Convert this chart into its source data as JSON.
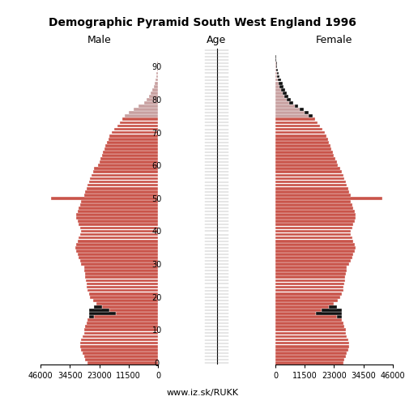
{
  "title": "Demographic Pyramid South West England 1996",
  "male_label": "Male",
  "female_label": "Female",
  "age_label": "Age",
  "url_label": "www.iz.sk/RUKK",
  "bar_color_young": "#C9544A",
  "bar_color_old": "#C8A0A0",
  "black_color": "#111111",
  "xlim": 46000,
  "male": [
    27500,
    28500,
    29000,
    29500,
    30000,
    30500,
    30500,
    30000,
    29500,
    29000,
    29000,
    28500,
    28000,
    27500,
    25000,
    16500,
    19000,
    22000,
    24000,
    25500,
    26500,
    27000,
    27500,
    27800,
    28000,
    28200,
    28400,
    28600,
    28800,
    29000,
    30000,
    30500,
    31000,
    31500,
    32000,
    32500,
    32000,
    31500,
    31000,
    30500,
    30000,
    30500,
    31000,
    31500,
    32000,
    32000,
    31500,
    31000,
    30500,
    30000,
    42000,
    29000,
    28500,
    28000,
    27500,
    27000,
    26500,
    26000,
    25500,
    25000,
    23500,
    23000,
    22500,
    22000,
    21500,
    21000,
    20500,
    20000,
    19500,
    19000,
    18000,
    17000,
    16000,
    15000,
    14000,
    13000,
    11500,
    9500,
    7500,
    5500,
    4500,
    3500,
    2800,
    2200,
    1700,
    1300,
    1000,
    750,
    550,
    380,
    270,
    180,
    120,
    80,
    50,
    30
  ],
  "female": [
    26500,
    27000,
    27500,
    28000,
    28500,
    29000,
    29000,
    28500,
    28000,
    27500,
    27500,
    27000,
    26500,
    26000,
    24000,
    16000,
    18000,
    21000,
    23000,
    24500,
    25500,
    26000,
    26500,
    26800,
    27000,
    27200,
    27400,
    27600,
    27800,
    28000,
    29000,
    29500,
    30000,
    30500,
    31000,
    31500,
    31000,
    30500,
    30000,
    29500,
    29500,
    30000,
    30500,
    31000,
    31500,
    31500,
    31000,
    30500,
    30000,
    29500,
    42000,
    29500,
    29000,
    28500,
    28000,
    27500,
    27000,
    26500,
    26000,
    25500,
    24500,
    24000,
    23500,
    23000,
    22500,
    22000,
    21500,
    21000,
    20500,
    20000,
    19500,
    18500,
    17500,
    16500,
    15500,
    14500,
    13000,
    11000,
    9000,
    7000,
    6000,
    5200,
    4500,
    3800,
    3200,
    2700,
    2200,
    1700,
    1300,
    950,
    700,
    500,
    350,
    230,
    140,
    80
  ],
  "age_ticks": [
    0,
    10,
    20,
    30,
    40,
    50,
    60,
    70,
    80,
    90
  ],
  "x_ticks": [
    0,
    11500,
    23000,
    34500,
    46000
  ]
}
